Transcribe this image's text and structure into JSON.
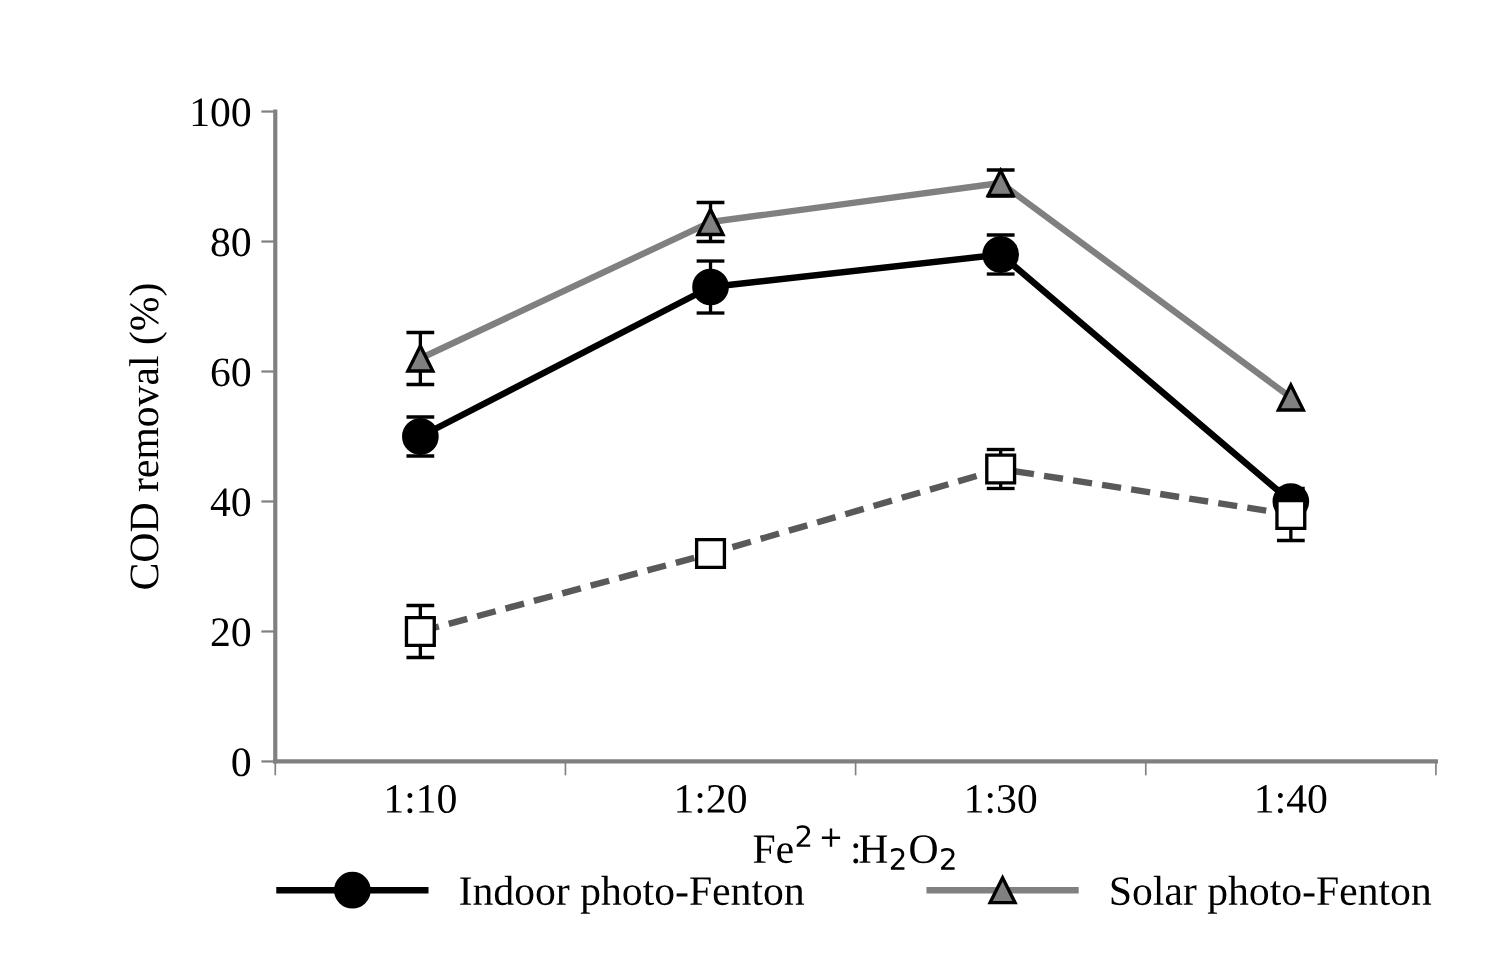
{
  "chart_data": {
    "type": "line",
    "xlabel": "Fe$^{2+}$:H$_{2}$O$_{2}$",
    "ylabel": "COD removal (%)",
    "categories": [
      "1:10",
      "1:20",
      "1:30",
      "1:40"
    ],
    "series": [
      {
        "name": "Indoor photo-Fenton",
        "color": "#000000",
        "marker": "circle",
        "line_style": "solid",
        "values": [
          50,
          73,
          78,
          40
        ],
        "errors": [
          3,
          4,
          3,
          null
        ]
      },
      {
        "name": "Solar photo-Fenton",
        "color": "#808080",
        "marker": "triangle",
        "line_style": "solid",
        "values": [
          62,
          83,
          89,
          56
        ],
        "errors": [
          4,
          3,
          2,
          null
        ]
      },
      {
        "color": "#595959",
        "marker": "square",
        "line_style": "dashed",
        "values": [
          20,
          32,
          45,
          38
        ],
        "errors": [
          4,
          null,
          3,
          4
        ]
      }
    ],
    "ylim": [
      0,
      100
    ],
    "yticks": [
      0,
      20,
      40,
      60,
      80,
      100
    ],
    "grid": false,
    "legend": "bottom"
  }
}
